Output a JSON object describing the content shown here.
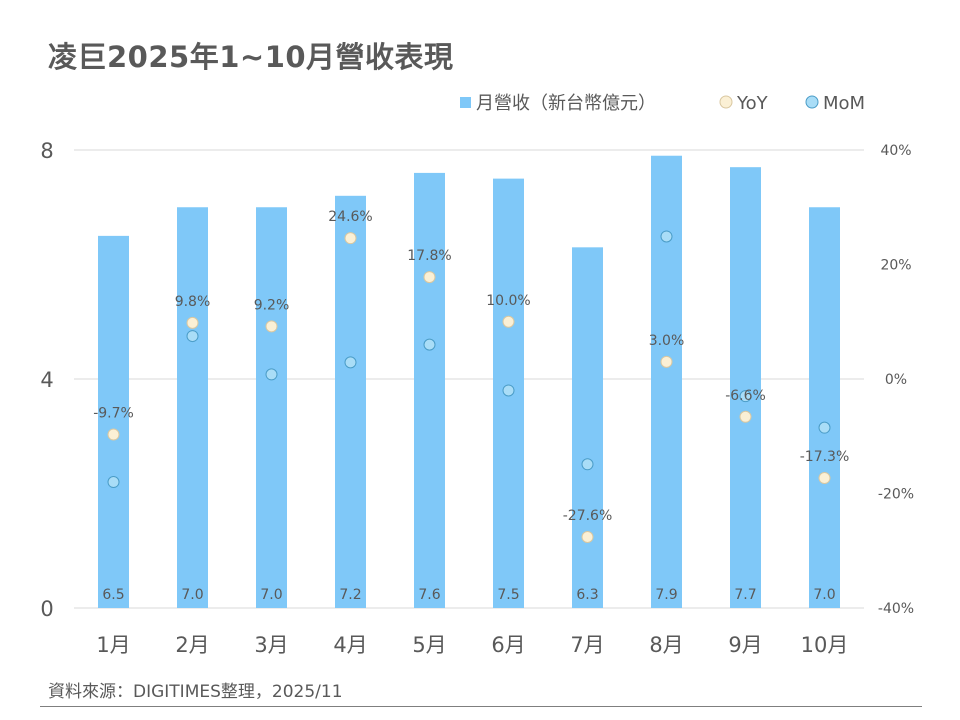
{
  "title": "凌巨2025年1~10月營收表現",
  "source": "資料來源：DIGITIMES整理，2025/11",
  "colors": {
    "bar": "#7fc8f8",
    "yoy_marker": "#fbf0d5",
    "yoy_stroke": "#d9c7a0",
    "mom_marker": "#a9ddf7",
    "mom_stroke": "#4a9cc7",
    "text": "#595959",
    "grid": "#d9d9d9"
  },
  "chart_data": {
    "type": "bar",
    "title": "凌巨2025年1~10月營收表現",
    "categories": [
      "1月",
      "2月",
      "3月",
      "4月",
      "5月",
      "6月",
      "7月",
      "8月",
      "9月",
      "10月"
    ],
    "series": [
      {
        "name": "月營收（新台幣億元）",
        "type": "bar",
        "axis": "left",
        "values": [
          6.5,
          7.0,
          7.0,
          7.2,
          7.6,
          7.5,
          6.3,
          7.9,
          7.7,
          7.0
        ],
        "labels": [
          "6.5",
          "7.0",
          "7.0",
          "7.2",
          "7.6",
          "7.5",
          "6.3",
          "7.9",
          "7.7",
          "7.0"
        ]
      },
      {
        "name": "YoY",
        "type": "scatter",
        "axis": "right",
        "values": [
          -9.7,
          9.8,
          9.2,
          24.6,
          17.8,
          10.0,
          -27.6,
          3.0,
          -6.6,
          -17.3
        ],
        "labels": [
          "-9.7%",
          "9.8%",
          "9.2%",
          "24.6%",
          "17.8%",
          "10.0%",
          "-27.6%",
          "3.0%",
          "-6.6%",
          "-17.3%"
        ]
      },
      {
        "name": "MoM",
        "type": "scatter",
        "axis": "right",
        "values": [
          -18.0,
          7.5,
          0.8,
          2.9,
          6.0,
          -2.0,
          -14.9,
          24.9,
          -3.0,
          -8.5
        ]
      }
    ],
    "ylim_left": [
      0,
      8
    ],
    "yticks_left": [
      "0",
      "4",
      "8"
    ],
    "ylim_right": [
      -40,
      40
    ],
    "yticks_right": [
      "-40%",
      "-20%",
      "0%",
      "20%",
      "40%"
    ],
    "grid": true,
    "legend_position": "top-right"
  }
}
